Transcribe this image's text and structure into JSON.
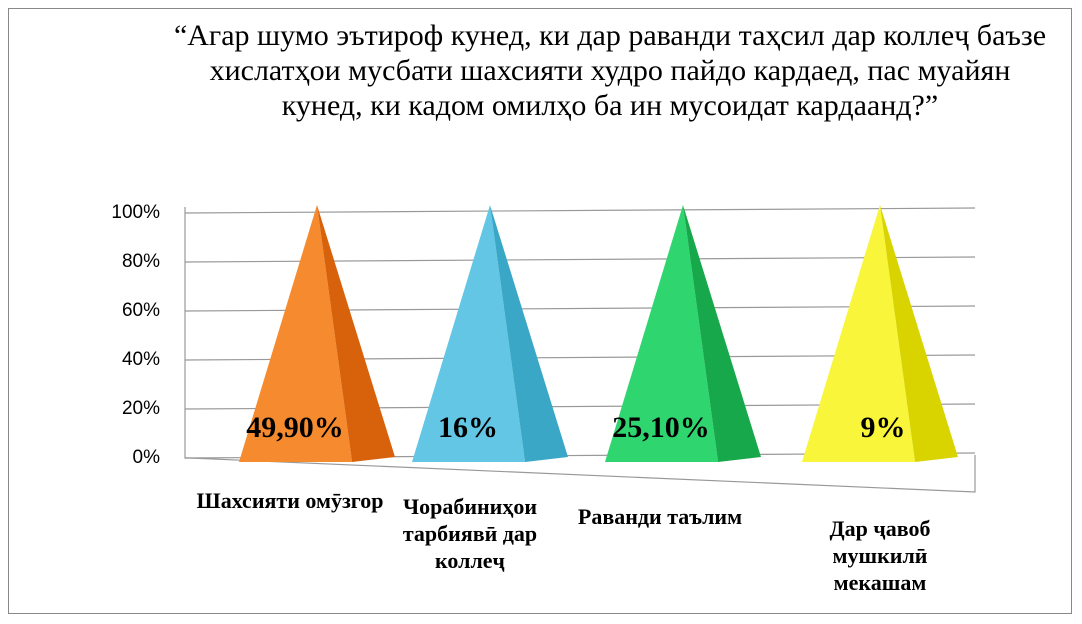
{
  "chart_data": {
    "type": "pyramid",
    "stacked": "100%",
    "title": "“Агар шумо эътироф кунед, ки дар раванди таҳсил дар коллеҷ баъзе хислатҳои мусбати шахсияти худро пайдо кардаед, пас муайян кунед, ки кадом омилҳо ба ин мусоидат кардаанд?”",
    "categories": [
      "Шахсияти омӯзгор",
      "Чорабиниҳои тарбиявӣ дар коллеҷ",
      "Раванди таълим",
      "Дар ҷавоб мушкилӣ мекашам"
    ],
    "values": [
      49.9,
      16,
      25.1,
      9
    ],
    "value_labels": [
      "49,90%",
      "16%",
      "25,10%",
      "9%"
    ],
    "colors": [
      [
        "#f68a2e",
        "#d8620c"
      ],
      [
        "#62c6e4",
        "#3aa7c7"
      ],
      [
        "#2fd56e",
        "#17a84c"
      ],
      [
        "#f8f53a",
        "#d9d400"
      ]
    ],
    "ylim": [
      0,
      100
    ],
    "yticks": [
      {
        "value": 0,
        "label": "0%"
      },
      {
        "value": 20,
        "label": "20%"
      },
      {
        "value": 40,
        "label": "40%"
      },
      {
        "value": 60,
        "label": "60%"
      },
      {
        "value": 80,
        "label": "80%"
      },
      {
        "value": 100,
        "label": "100%"
      }
    ],
    "grid": true
  }
}
